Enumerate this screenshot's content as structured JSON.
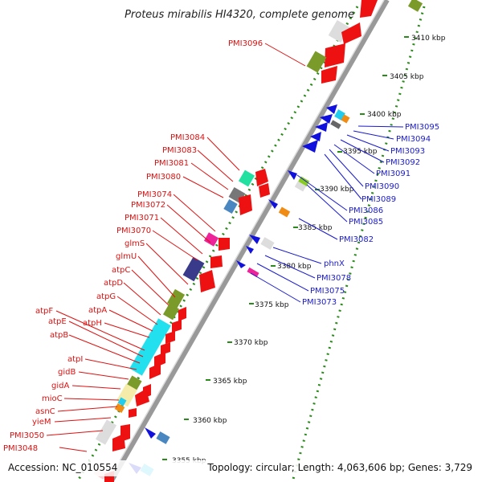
{
  "title": "Proteus mirabilis HI4320, complete genome",
  "footer": {
    "accession": "Accession: NC_010554",
    "topology": "Topology: circular; Length: 4,063,606 bp; Genes: 3,729"
  },
  "colors": {
    "forward_cds": "#ee1111",
    "reverse_cds": "#1111dd",
    "backbone": "#9a9a9a",
    "tick_dots": "#2a8a1a",
    "label_red": "#dd1111",
    "label_blue": "#1a1acc"
  },
  "scale_labels": [
    "3410 kbp",
    "3405 kbp",
    "3400 kbp",
    "3395 kbp",
    "3390 kbp",
    "3385 kbp",
    "3380 kbp",
    "3375 kbp",
    "3370 kbp",
    "3365 kbp",
    "3360 kbp",
    "3355 kbp"
  ],
  "forward_labels": [
    "PMI3096",
    "PMI3084",
    "PMI3083",
    "PMI3081",
    "PMI3080",
    "PMI3074",
    "PMI3072",
    "PMI3071",
    "PMI3070",
    "glmS",
    "glmU",
    "atpC",
    "atpD",
    "atpG",
    "atpA",
    "atpH",
    "atpF",
    "atpE",
    "atpB",
    "atpI",
    "gidB",
    "gidA",
    "mioC",
    "asnC",
    "yieM",
    "PMI3050",
    "PMI3048"
  ],
  "reverse_labels": [
    "PMI3095",
    "PMI3094",
    "PMI3093",
    "PMI3092",
    "PMI3091",
    "PMI3090",
    "PMI3089",
    "PMI3086",
    "PMI3085",
    "PMI3082",
    "phnX",
    "PMI3078",
    "PMI3075",
    "PMI3073"
  ]
}
